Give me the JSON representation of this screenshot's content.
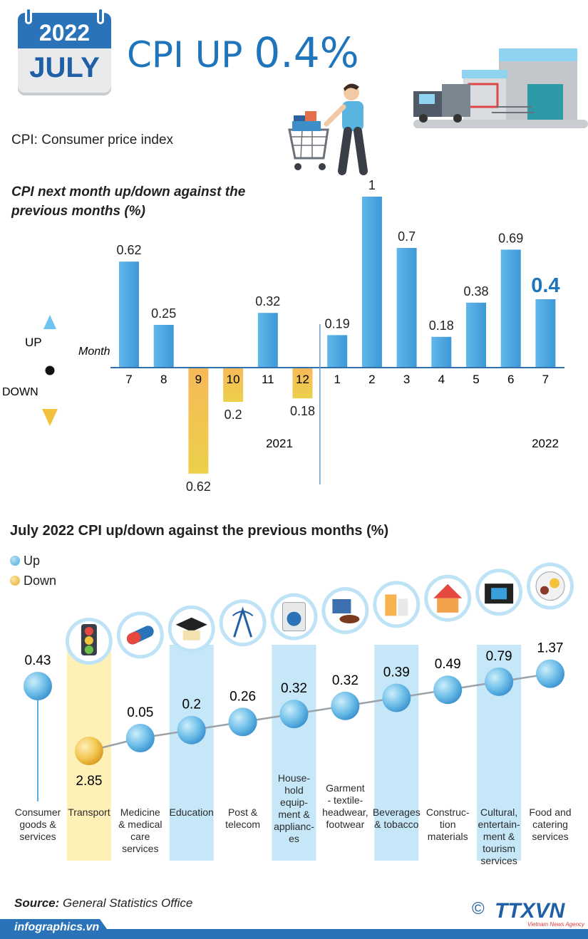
{
  "header": {
    "year": "2022",
    "month": "JULY",
    "headline_prefix": "CPI UP",
    "headline_value": "0.4%",
    "subtitle": "CPI: Consumer price index"
  },
  "chart1_title": "CPI next month up/down against the previous months (%)",
  "axis": {
    "month_label": "Month",
    "up_label": "UP",
    "down_label": "DOWN"
  },
  "chart_data": [
    {
      "type": "bar",
      "title": "CPI next month up/down against the previous months (%)",
      "xlabel": "Month",
      "ylabel": "%",
      "categories": [
        "7",
        "8",
        "9",
        "10",
        "11",
        "12",
        "1",
        "2",
        "3",
        "4",
        "5",
        "6",
        "7"
      ],
      "values": [
        0.62,
        0.25,
        -0.62,
        -0.2,
        0.32,
        -0.18,
        0.19,
        1.0,
        0.7,
        0.18,
        0.38,
        0.69,
        0.4
      ],
      "labels": [
        "0.62",
        "0.25",
        "0.62",
        "0.2",
        "0.32",
        "0.18",
        "0.19",
        "1",
        "0.7",
        "0.18",
        "0.38",
        "0.69",
        "0.4"
      ],
      "year_groups": [
        {
          "label": "2021",
          "months": 6
        },
        {
          "label": "2022",
          "months": 7
        }
      ],
      "ylim": [
        -0.62,
        1.0
      ],
      "colors": {
        "up": "#5aaee3",
        "down": "#f2c14e",
        "highlight": "#1f75bb"
      }
    },
    {
      "type": "line",
      "title": "July 2022 CPI up/down against the previous months (%)",
      "categories": [
        "Consumer goods & services",
        "Transport",
        "Medicine & medical care services",
        "Education",
        "Post & telecom",
        "House-hold equip-ment & applianc-es",
        "Garment - textile-headwear, footwear",
        "Beverages & tobacco",
        "Construc-tion materials",
        "Cultural, entertain-ment & tourism services",
        "Food and catering services"
      ],
      "values": [
        0.43,
        -2.85,
        0.05,
        0.2,
        0.26,
        0.32,
        0.32,
        0.39,
        0.49,
        0.79,
        1.37
      ],
      "labels": [
        "0.43",
        "2.85",
        "0.05",
        "0.2",
        "0.26",
        "0.32",
        "0.32",
        "0.39",
        "0.49",
        "0.79",
        "1.37"
      ],
      "category_lines": [
        [
          "Consumer",
          "goods &",
          "services"
        ],
        [
          "Transport"
        ],
        [
          "Medicine",
          "& medical",
          "care",
          "services"
        ],
        [
          "Education"
        ],
        [
          "Post &",
          "telecom"
        ],
        [
          "House-",
          "hold",
          "equip-",
          "ment &",
          "applianc-",
          "es"
        ],
        [
          "Garment",
          "- textile-",
          "headwear,",
          "footwear"
        ],
        [
          "Beverages",
          "& tobacco"
        ],
        [
          "Construc-",
          "tion",
          "materials"
        ],
        [
          "Cultural,",
          "entertain-",
          "ment &",
          "tourism",
          "services"
        ],
        [
          "Food and",
          "catering",
          "services"
        ]
      ],
      "legend": [
        "Up",
        "Down"
      ]
    }
  ],
  "section2_title": "July 2022 CPI up/down against the previous months (%)",
  "legend": {
    "up": "Up",
    "down": "Down"
  },
  "source_label": "Source:",
  "source_text": "General Statistics Office",
  "footer_site": "infographics.vn",
  "logo_text": "TTXVN",
  "logo_sub": "Vietnam News Agency",
  "copyright": "©"
}
